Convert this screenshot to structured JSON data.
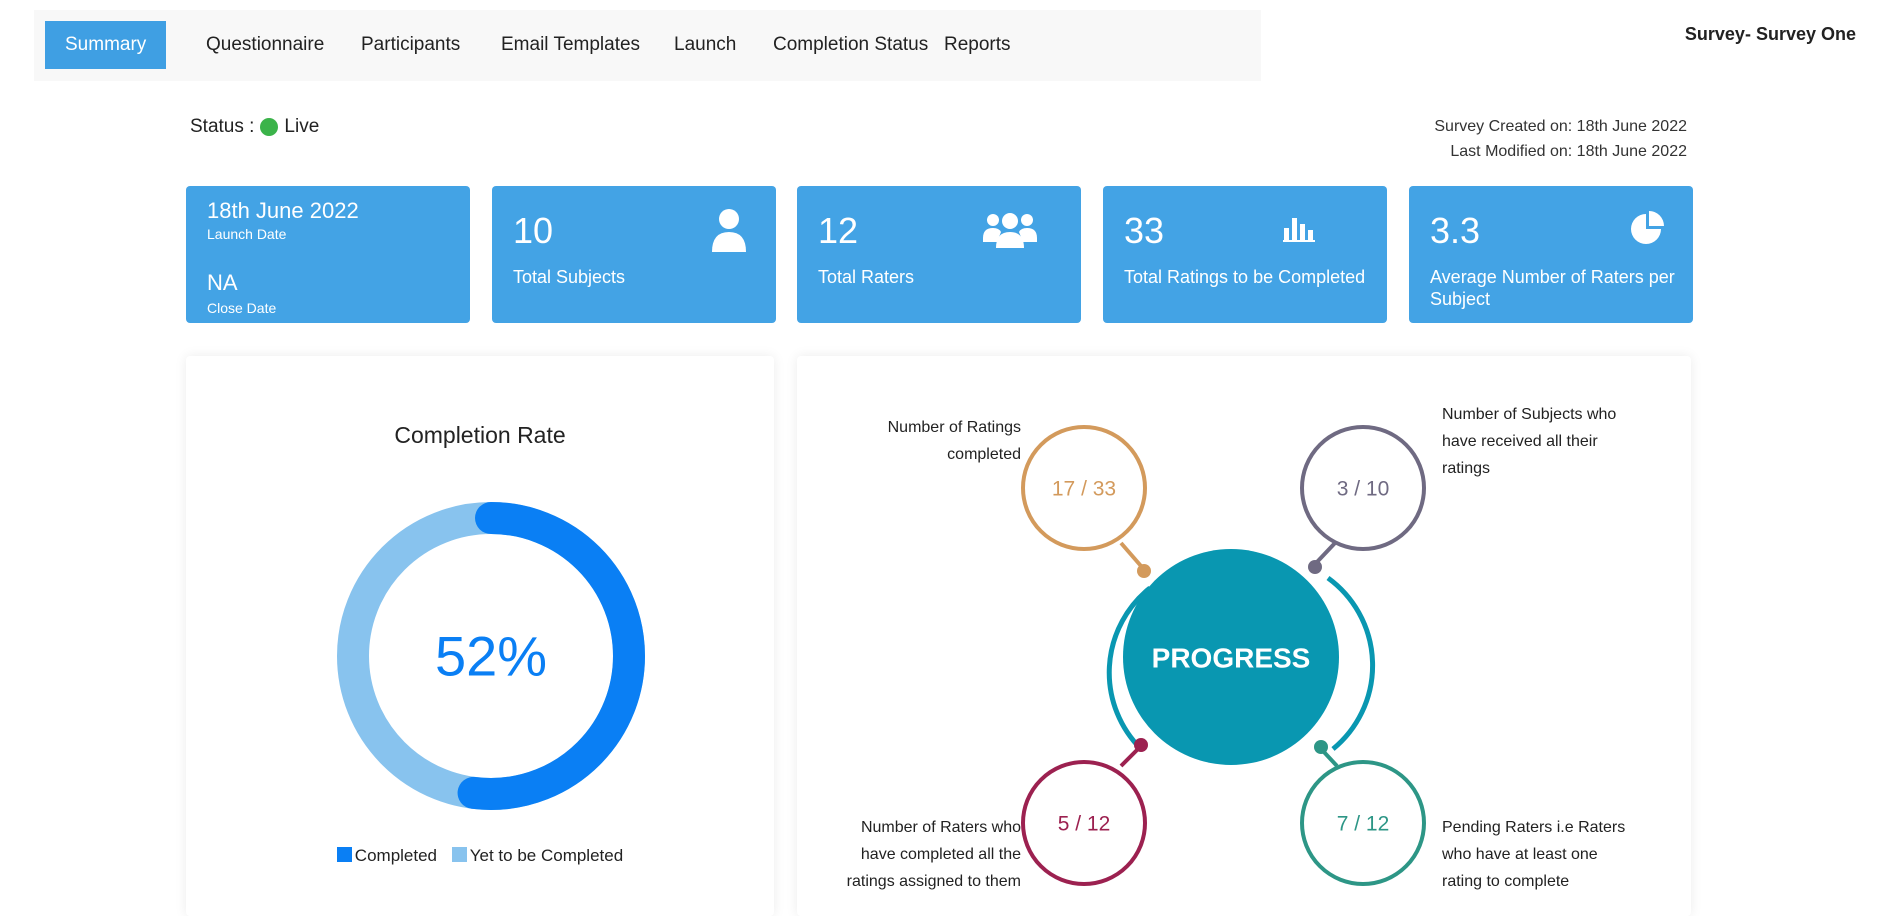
{
  "nav": {
    "tabs": [
      "Summary",
      "Questionnaire",
      "Participants",
      "Email Templates",
      "Launch",
      "Completion Status",
      "Reports"
    ],
    "active": "Summary"
  },
  "survey_title": "Survey- Survey One",
  "status": {
    "label": "Status :",
    "value": "Live",
    "color": "#3bb34a"
  },
  "dates": {
    "created": "Survey Created on: 18th June 2022",
    "modified": "Last Modified on: 18th June 2022"
  },
  "cards": {
    "launch": {
      "date": "18th June 2022",
      "date_label": "Launch Date",
      "close": "NA",
      "close_label": "Close Date"
    },
    "subjects": {
      "value": "10",
      "label": "Total Subjects",
      "icon": "user-icon"
    },
    "raters": {
      "value": "12",
      "label": "Total Raters",
      "icon": "users-icon"
    },
    "ratings": {
      "value": "33",
      "label": "Total Ratings to be Completed",
      "icon": "bar-chart-icon"
    },
    "average": {
      "value": "3.3",
      "label": "Average Number of Raters per Subject",
      "icon": "pie-chart-icon"
    }
  },
  "completion": {
    "title": "Completion Rate",
    "center_label": "52%",
    "legend": [
      {
        "label": "Completed",
        "color": "#0a7ff4"
      },
      {
        "label": "Yet to be Completed",
        "color": "#88c3ee"
      }
    ]
  },
  "chart_data": {
    "type": "pie",
    "title": "Completion Rate",
    "categories": [
      "Completed",
      "Yet to be Completed"
    ],
    "values": [
      52,
      48
    ],
    "colors": [
      "#0a7ff4",
      "#88c3ee"
    ]
  },
  "progress": {
    "center": "PROGRESS",
    "ratings": {
      "value": "17 / 33",
      "label_lines": [
        "Number of Ratings",
        "completed"
      ],
      "color": "#d39a5c"
    },
    "subjects": {
      "value": "3 / 10",
      "label_lines": [
        "Number of Subjects who",
        "have received all their",
        "ratings"
      ],
      "color": "#6f6a82"
    },
    "raters_done": {
      "value": "5 / 12",
      "label_lines": [
        "Number of Raters who",
        "have completed all the",
        "ratings assigned to them"
      ],
      "color": "#9c2150"
    },
    "pending": {
      "value": "7 / 12",
      "label_lines": [
        "Pending Raters i.e Raters",
        "who have at least one",
        "rating to complete"
      ],
      "color": "#2d9686"
    },
    "center_color": "#0997b1"
  }
}
